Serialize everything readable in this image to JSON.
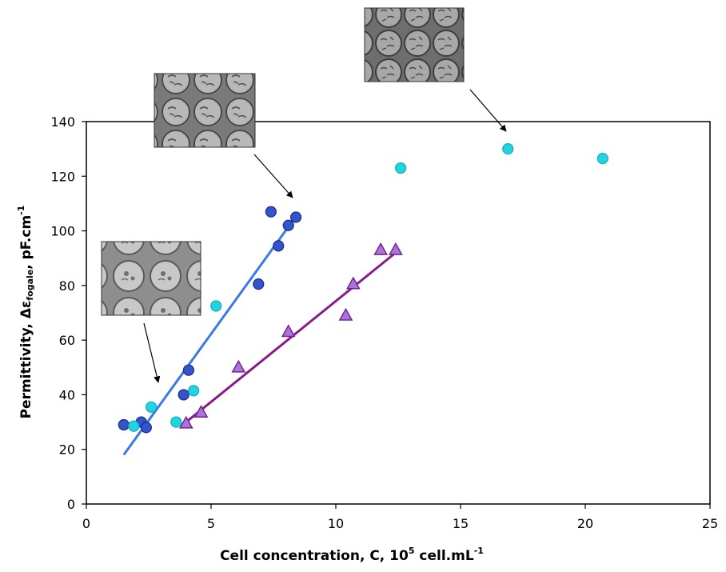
{
  "chart_data": {
    "type": "scatter",
    "xlabel": {
      "main": "Cell concentration, C, 10",
      "sup": "5",
      "unit": " cell.mL",
      "unit_sup": "-1"
    },
    "ylabel": {
      "main": "Permittivity, Δε",
      "sub": "fogale",
      "unit": ", pF.cm",
      "unit_sup": "-1"
    },
    "xlim": [
      0,
      25
    ],
    "ylim": [
      0,
      140
    ],
    "x_ticks": [
      "0",
      "5",
      "10",
      "15",
      "20",
      "25"
    ],
    "y_ticks": [
      "0",
      "20",
      "40",
      "60",
      "80",
      "100",
      "120",
      "140"
    ],
    "grid": false,
    "series": [
      {
        "marker": "circle",
        "color": "#3355cc",
        "points": [
          [
            1.5,
            29
          ],
          [
            2.2,
            30
          ],
          [
            2.4,
            28
          ],
          [
            3.9,
            40
          ],
          [
            4.1,
            49
          ],
          [
            6.9,
            80.5
          ],
          [
            7.4,
            107
          ],
          [
            7.7,
            94.5
          ],
          [
            8.1,
            102
          ],
          [
            8.4,
            105
          ]
        ],
        "fit_line": {
          "color": "#3a78e8",
          "x": [
            1.5,
            8.3
          ],
          "y": [
            18,
            104
          ]
        }
      },
      {
        "marker": "circle",
        "color": "#22d3e0",
        "points": [
          [
            1.9,
            28.5
          ],
          [
            2.6,
            35.5
          ],
          [
            3.6,
            30
          ],
          [
            4.3,
            41.5
          ],
          [
            5.2,
            72.5
          ],
          [
            12.6,
            123
          ],
          [
            16.9,
            130
          ],
          [
            20.7,
            126.5
          ]
        ]
      },
      {
        "marker": "triangle",
        "color": "#b070e0",
        "points": [
          [
            4.0,
            29.5
          ],
          [
            4.6,
            33.5
          ],
          [
            6.1,
            50
          ],
          [
            8.1,
            63
          ],
          [
            10.4,
            69
          ],
          [
            10.7,
            80.5
          ],
          [
            11.8,
            93
          ],
          [
            12.4,
            93
          ]
        ],
        "fit_line": {
          "color": "#8a1a8a",
          "x": [
            4.0,
            12.4
          ],
          "y": [
            30,
            92
          ]
        }
      }
    ]
  },
  "colors": {
    "blue_marker_stroke": "#1a2a88",
    "cyan_marker_stroke": "#18a8b8",
    "purple_marker_stroke": "#6a2a8a",
    "arrow": "#000000"
  }
}
